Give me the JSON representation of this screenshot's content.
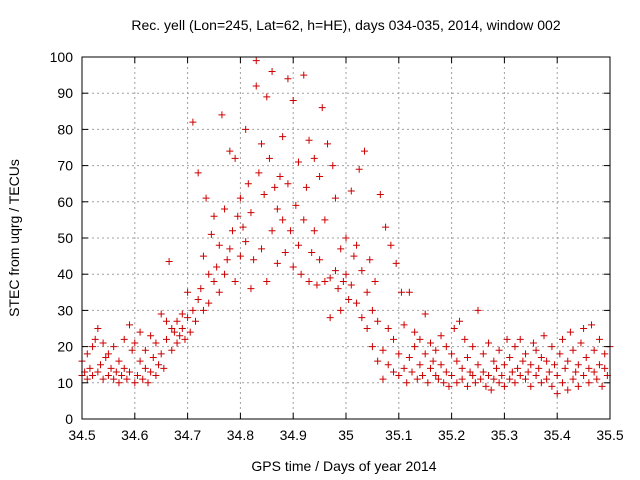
{
  "chart_data": {
    "type": "scatter",
    "title": "Rec. yell (Lon=245, Lat=62, h=HE), days 034-035, 2014, window 002",
    "xlabel": "GPS time / Days of year 2014",
    "ylabel": "STEC from uqrg / TECUs",
    "xlim": [
      34.5,
      35.5
    ],
    "ylim": [
      0,
      100
    ],
    "xticks": [
      "34.5",
      "34.6",
      "34.7",
      "34.8",
      "34.9",
      "35",
      "35.1",
      "35.2",
      "35.3",
      "35.4",
      "35.5"
    ],
    "yticks": [
      "0",
      "10",
      "20",
      "30",
      "40",
      "50",
      "60",
      "70",
      "80",
      "90",
      "100"
    ],
    "grid": true,
    "marker": "plus",
    "color": "#cc0000",
    "series": [
      {
        "points": [
          [
            34.5,
            12
          ],
          [
            34.5,
            16
          ],
          [
            34.505,
            13
          ],
          [
            34.51,
            11
          ],
          [
            34.51,
            18
          ],
          [
            34.515,
            14
          ],
          [
            34.52,
            12
          ],
          [
            34.52,
            20
          ],
          [
            34.525,
            22
          ],
          [
            34.53,
            13
          ],
          [
            34.53,
            25
          ],
          [
            34.535,
            15
          ],
          [
            34.54,
            11
          ],
          [
            34.54,
            21
          ],
          [
            34.545,
            17
          ],
          [
            34.55,
            12
          ],
          [
            34.55,
            18
          ],
          [
            34.555,
            14
          ],
          [
            34.56,
            11
          ],
          [
            34.56,
            20
          ],
          [
            34.565,
            13
          ],
          [
            34.57,
            10
          ],
          [
            34.57,
            16
          ],
          [
            34.575,
            12
          ],
          [
            34.58,
            22
          ],
          [
            34.58,
            14
          ],
          [
            34.585,
            11
          ],
          [
            34.59,
            26
          ],
          [
            34.59,
            13
          ],
          [
            34.595,
            19
          ],
          [
            34.6,
            10
          ],
          [
            34.6,
            21
          ],
          [
            34.605,
            12
          ],
          [
            34.61,
            16
          ],
          [
            34.61,
            24
          ],
          [
            34.615,
            11
          ],
          [
            34.62,
            14
          ],
          [
            34.62,
            19
          ],
          [
            34.625,
            10
          ],
          [
            34.63,
            23
          ],
          [
            34.63,
            13
          ],
          [
            34.635,
            17
          ],
          [
            34.64,
            12
          ],
          [
            34.64,
            21
          ],
          [
            34.645,
            15
          ],
          [
            34.65,
            29
          ],
          [
            34.65,
            18
          ],
          [
            34.655,
            14
          ],
          [
            34.66,
            22
          ],
          [
            34.66,
            27
          ],
          [
            34.665,
            43.5
          ],
          [
            34.67,
            19
          ],
          [
            34.67,
            25
          ],
          [
            34.675,
            24
          ],
          [
            34.68,
            21
          ],
          [
            34.68,
            27
          ],
          [
            34.685,
            23
          ],
          [
            34.69,
            25
          ],
          [
            34.69,
            29
          ],
          [
            34.695,
            22
          ],
          [
            34.7,
            28
          ],
          [
            34.7,
            35
          ],
          [
            34.705,
            24
          ],
          [
            34.71,
            30
          ],
          [
            34.71,
            82
          ],
          [
            34.715,
            27
          ],
          [
            34.72,
            33
          ],
          [
            34.72,
            68
          ],
          [
            34.725,
            36
          ],
          [
            34.73,
            30
          ],
          [
            34.73,
            45
          ],
          [
            34.735,
            61
          ],
          [
            34.74,
            32
          ],
          [
            34.74,
            40
          ],
          [
            34.745,
            51
          ],
          [
            34.75,
            38
          ],
          [
            34.75,
            56
          ],
          [
            34.755,
            42
          ],
          [
            34.76,
            35
          ],
          [
            34.76,
            48
          ],
          [
            34.765,
            84
          ],
          [
            34.77,
            40
          ],
          [
            34.77,
            58
          ],
          [
            34.775,
            44
          ],
          [
            34.78,
            47
          ],
          [
            34.78,
            74
          ],
          [
            34.785,
            52
          ],
          [
            34.79,
            38
          ],
          [
            34.79,
            72
          ],
          [
            34.795,
            56
          ],
          [
            34.8,
            45
          ],
          [
            34.8,
            61
          ],
          [
            34.805,
            53
          ],
          [
            34.81,
            49
          ],
          [
            34.81,
            80
          ],
          [
            34.815,
            65
          ],
          [
            34.82,
            36
          ],
          [
            34.82,
            57
          ],
          [
            34.825,
            44
          ],
          [
            34.83,
            99
          ],
          [
            34.83,
            92
          ],
          [
            34.835,
            68
          ],
          [
            34.84,
            47
          ],
          [
            34.84,
            76
          ],
          [
            34.845,
            62
          ],
          [
            34.85,
            38
          ],
          [
            34.85,
            89
          ],
          [
            34.855,
            72
          ],
          [
            34.86,
            52
          ],
          [
            34.86,
            96
          ],
          [
            34.865,
            64
          ],
          [
            34.87,
            43
          ],
          [
            34.87,
            58
          ],
          [
            34.875,
            67
          ],
          [
            34.88,
            55
          ],
          [
            34.88,
            78
          ],
          [
            34.885,
            46
          ],
          [
            34.89,
            94
          ],
          [
            34.89,
            65
          ],
          [
            34.895,
            52
          ],
          [
            34.9,
            42
          ],
          [
            34.9,
            88
          ],
          [
            34.905,
            59
          ],
          [
            34.91,
            48
          ],
          [
            34.91,
            71
          ],
          [
            34.915,
            40
          ],
          [
            34.92,
            95
          ],
          [
            34.92,
            55
          ],
          [
            34.925,
            64
          ],
          [
            34.93,
            38
          ],
          [
            34.93,
            77
          ],
          [
            34.935,
            46
          ],
          [
            34.94,
            52
          ],
          [
            34.94,
            72
          ],
          [
            34.945,
            37
          ],
          [
            34.95,
            44
          ],
          [
            34.95,
            67
          ],
          [
            34.955,
            86
          ],
          [
            34.96,
            38
          ],
          [
            34.96,
            55
          ],
          [
            34.965,
            76
          ],
          [
            34.97,
            39
          ],
          [
            34.97,
            28
          ],
          [
            34.975,
            70
          ],
          [
            34.98,
            41
          ],
          [
            34.98,
            61
          ],
          [
            34.985,
            36
          ],
          [
            34.99,
            47
          ],
          [
            34.99,
            30
          ],
          [
            34.995,
            38
          ],
          [
            35.0,
            40
          ],
          [
            35.0,
            50
          ],
          [
            35.005,
            33
          ],
          [
            35.01,
            37
          ],
          [
            35.01,
            63
          ],
          [
            35.015,
            45
          ],
          [
            35.02,
            32
          ],
          [
            35.02,
            48
          ],
          [
            35.025,
            69
          ],
          [
            35.03,
            28
          ],
          [
            35.03,
            41
          ],
          [
            35.035,
            74
          ],
          [
            35.04,
            25
          ],
          [
            35.04,
            35
          ],
          [
            35.045,
            44
          ],
          [
            35.05,
            20
          ],
          [
            35.05,
            30
          ],
          [
            35.055,
            38
          ],
          [
            35.06,
            16
          ],
          [
            35.06,
            27
          ],
          [
            35.065,
            62
          ],
          [
            35.07,
            11
          ],
          [
            35.07,
            19
          ],
          [
            35.075,
            53
          ],
          [
            35.08,
            15
          ],
          [
            35.08,
            25
          ],
          [
            35.085,
            48
          ],
          [
            35.09,
            13
          ],
          [
            35.09,
            22
          ],
          [
            35.095,
            43
          ],
          [
            35.1,
            12
          ],
          [
            35.1,
            18
          ],
          [
            35.105,
            35
          ],
          [
            35.11,
            14
          ],
          [
            35.11,
            26
          ],
          [
            35.115,
            10
          ],
          [
            35.12,
            17
          ],
          [
            35.12,
            35
          ],
          [
            35.125,
            13
          ],
          [
            35.13,
            20
          ],
          [
            35.13,
            24
          ],
          [
            35.135,
            11
          ],
          [
            35.14,
            15
          ],
          [
            35.14,
            22
          ],
          [
            35.145,
            12
          ],
          [
            35.15,
            18
          ],
          [
            35.15,
            29
          ],
          [
            35.155,
            10
          ],
          [
            35.16,
            14
          ],
          [
            35.16,
            21
          ],
          [
            35.165,
            16
          ],
          [
            35.17,
            12
          ],
          [
            35.17,
            19
          ],
          [
            35.175,
            11
          ],
          [
            35.18,
            15
          ],
          [
            35.18,
            23
          ],
          [
            35.185,
            10
          ],
          [
            35.19,
            13
          ],
          [
            35.19,
            20
          ],
          [
            35.195,
            9
          ],
          [
            35.2,
            12
          ],
          [
            35.2,
            18
          ],
          [
            35.205,
            25
          ],
          [
            35.21,
            10
          ],
          [
            35.21,
            16
          ],
          [
            35.215,
            27
          ],
          [
            35.22,
            11
          ],
          [
            35.22,
            14
          ],
          [
            35.225,
            22
          ],
          [
            35.23,
            9
          ],
          [
            35.23,
            17
          ],
          [
            35.235,
            13
          ],
          [
            35.24,
            12
          ],
          [
            35.24,
            20
          ],
          [
            35.245,
            10
          ],
          [
            35.25,
            15
          ],
          [
            35.25,
            30
          ],
          [
            35.255,
            11
          ],
          [
            35.26,
            13
          ],
          [
            35.26,
            18
          ],
          [
            35.265,
            9
          ],
          [
            35.27,
            12
          ],
          [
            35.27,
            21
          ],
          [
            35.275,
            8
          ],
          [
            35.28,
            11
          ],
          [
            35.28,
            16
          ],
          [
            35.285,
            14
          ],
          [
            35.29,
            10
          ],
          [
            35.29,
            19
          ],
          [
            35.295,
            12
          ],
          [
            35.3,
            9
          ],
          [
            35.3,
            15
          ],
          [
            35.305,
            22
          ],
          [
            35.31,
            11
          ],
          [
            35.31,
            17
          ],
          [
            35.315,
            13
          ],
          [
            35.32,
            10
          ],
          [
            35.32,
            20
          ],
          [
            35.325,
            14
          ],
          [
            35.33,
            12
          ],
          [
            35.33,
            22
          ],
          [
            35.335,
            16
          ],
          [
            35.34,
            11
          ],
          [
            35.34,
            18
          ],
          [
            35.345,
            13
          ],
          [
            35.35,
            9
          ],
          [
            35.35,
            15
          ],
          [
            35.355,
            21
          ],
          [
            35.36,
            12
          ],
          [
            35.36,
            19
          ],
          [
            35.365,
            14
          ],
          [
            35.37,
            10
          ],
          [
            35.37,
            17
          ],
          [
            35.375,
            23
          ],
          [
            35.38,
            11
          ],
          [
            35.38,
            16
          ],
          [
            35.385,
            13
          ],
          [
            35.39,
            9
          ],
          [
            35.39,
            20
          ],
          [
            35.395,
            15
          ],
          [
            35.4,
            7
          ],
          [
            35.4,
            12
          ],
          [
            35.405,
            18
          ],
          [
            35.41,
            10
          ],
          [
            35.41,
            22
          ],
          [
            35.415,
            14
          ],
          [
            35.42,
            8
          ],
          [
            35.42,
            16
          ],
          [
            35.425,
            24
          ],
          [
            35.43,
            11
          ],
          [
            35.43,
            19
          ],
          [
            35.435,
            13
          ],
          [
            35.44,
            9
          ],
          [
            35.44,
            15
          ],
          [
            35.445,
            21
          ],
          [
            35.45,
            12
          ],
          [
            35.45,
            25
          ],
          [
            35.455,
            17
          ],
          [
            35.46,
            10
          ],
          [
            35.46,
            14
          ],
          [
            35.465,
            26
          ],
          [
            35.47,
            13
          ],
          [
            35.47,
            19
          ],
          [
            35.475,
            11
          ],
          [
            35.48,
            15
          ],
          [
            35.48,
            22
          ],
          [
            35.485,
            9
          ],
          [
            35.49,
            14
          ],
          [
            35.49,
            18
          ],
          [
            35.495,
            12
          ],
          [
            35.5,
            20
          ]
        ]
      }
    ]
  }
}
